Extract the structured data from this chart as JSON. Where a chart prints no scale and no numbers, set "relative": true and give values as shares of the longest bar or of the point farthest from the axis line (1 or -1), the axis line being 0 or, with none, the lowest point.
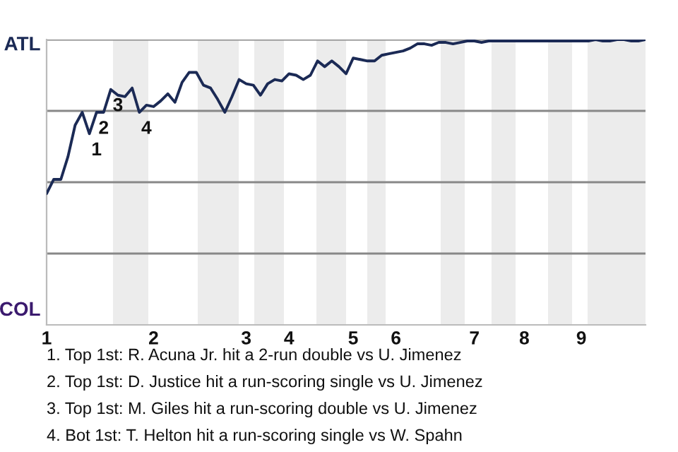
{
  "chart_data": {
    "type": "line",
    "relative": true,
    "categories": [
      "1",
      null,
      null,
      null,
      null,
      null,
      null,
      null,
      null,
      null,
      null,
      null,
      null,
      null,
      null,
      "2",
      null,
      null,
      null,
      null,
      null,
      null,
      null,
      null,
      null,
      null,
      null,
      null,
      "3",
      null,
      null,
      null,
      null,
      null,
      "4",
      null,
      null,
      null,
      null,
      null,
      null,
      null,
      null,
      "5",
      null,
      null,
      null,
      null,
      null,
      "6",
      null,
      null,
      null,
      null,
      null,
      null,
      null,
      null,
      null,
      null,
      "7",
      null,
      null,
      null,
      null,
      null,
      null,
      "8",
      null,
      null,
      null,
      null,
      null,
      null,
      null,
      "9",
      null,
      null,
      null,
      null,
      null,
      null,
      null,
      null,
      null
    ],
    "series": [
      {
        "color": "#1b2a55",
        "values": [
          0.46,
          0.51,
          0.51,
          0.59,
          0.7,
          0.745,
          0.67,
          0.745,
          0.745,
          0.825,
          0.805,
          0.8,
          0.83,
          0.745,
          0.77,
          0.765,
          0.785,
          0.81,
          0.78,
          0.85,
          0.885,
          0.885,
          0.84,
          0.83,
          0.79,
          0.745,
          0.8,
          0.86,
          0.845,
          0.84,
          0.805,
          0.845,
          0.86,
          0.855,
          0.88,
          0.875,
          0.86,
          0.875,
          0.925,
          0.905,
          0.925,
          0.905,
          0.88,
          0.935,
          0.93,
          0.925,
          0.925,
          0.945,
          0.95,
          0.955,
          0.96,
          0.97,
          0.985,
          0.985,
          0.98,
          0.99,
          0.99,
          0.985,
          0.99,
          0.995,
          0.995,
          0.99,
          0.995,
          0.995,
          0.995,
          0.995,
          0.995,
          0.995,
          0.995,
          0.995,
          0.995,
          0.995,
          0.995,
          0.995,
          0.995,
          0.995,
          0.995,
          1.0,
          0.995,
          0.995,
          1.0,
          1.0,
          0.995,
          0.995,
          1.0
        ]
      }
    ],
    "grid": "y",
    "marker": "none",
    "line_style": "solid",
    "annotations": [
      "ATL",
      "COL",
      {
        "text": "1",
        "y": 0.67
      },
      {
        "text": "2",
        "y": 0.745
      },
      {
        "text": "3",
        "y": 0.825
      },
      {
        "text": "4",
        "y": 0.745
      },
      "1. Top 1st: R. Acuna Jr. hit a 2-run double vs U. Jimenez",
      "2. Top 1st: D. Justice hit a run-scoring single vs U. Jimenez",
      "3. Top 1st: M. Giles hit a run-scoring double vs U. Jimenez",
      "4. Bot 1st: T. Helton hit a run-scoring single vs W. Spahn"
    ]
  }
}
